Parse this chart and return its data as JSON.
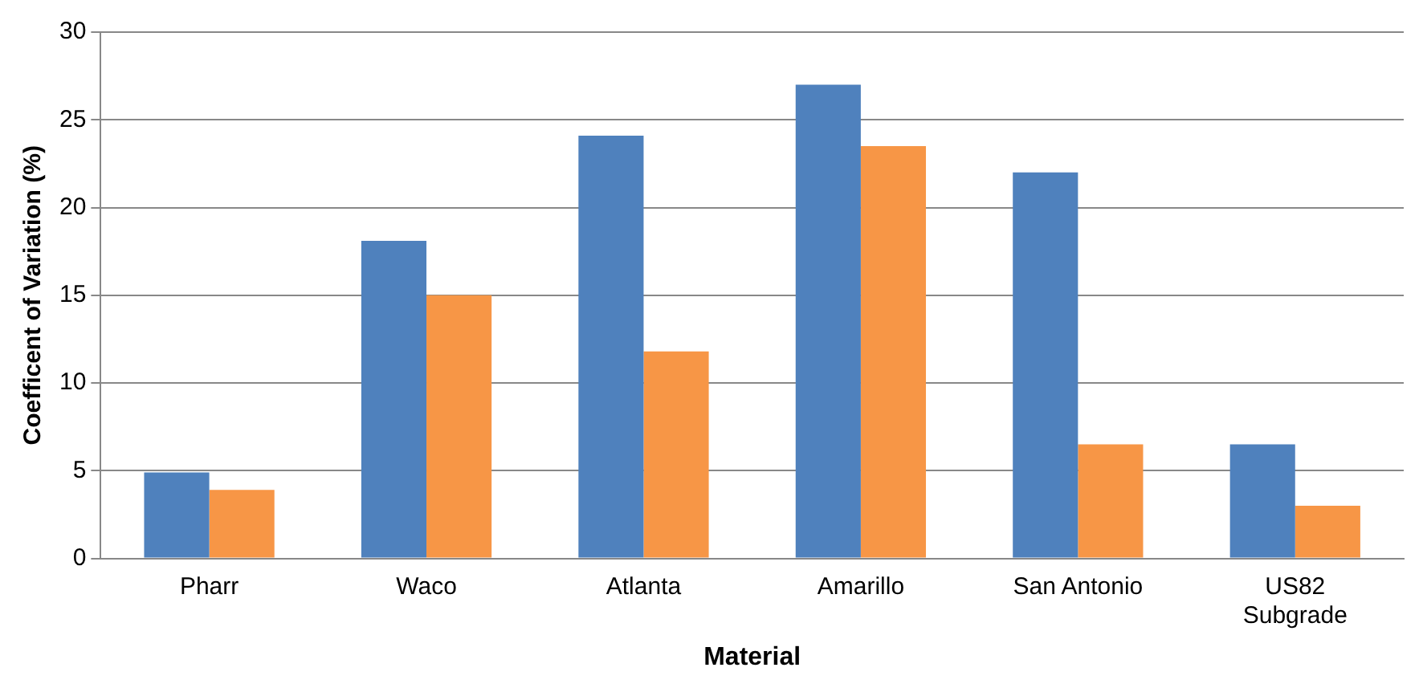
{
  "chart_data": {
    "type": "bar",
    "xlabel": "Material",
    "ylabel": "Coefficent of Variation (%)",
    "categories": [
      "Pharr",
      "Waco",
      "Atlanta",
      "Amarillo",
      "San Antonio",
      "US82 Subgrade"
    ],
    "series": [
      {
        "color": "#4f81bd",
        "values": [
          4.9,
          18.1,
          24.1,
          27.0,
          22.0,
          6.5
        ]
      },
      {
        "color": "#f79646",
        "values": [
          3.9,
          15.0,
          11.8,
          23.5,
          6.5,
          3.0
        ]
      }
    ],
    "ylim": [
      0,
      30
    ],
    "yticks": [
      0,
      5,
      10,
      15,
      20,
      25,
      30
    ],
    "grid": "y",
    "legend": false
  }
}
